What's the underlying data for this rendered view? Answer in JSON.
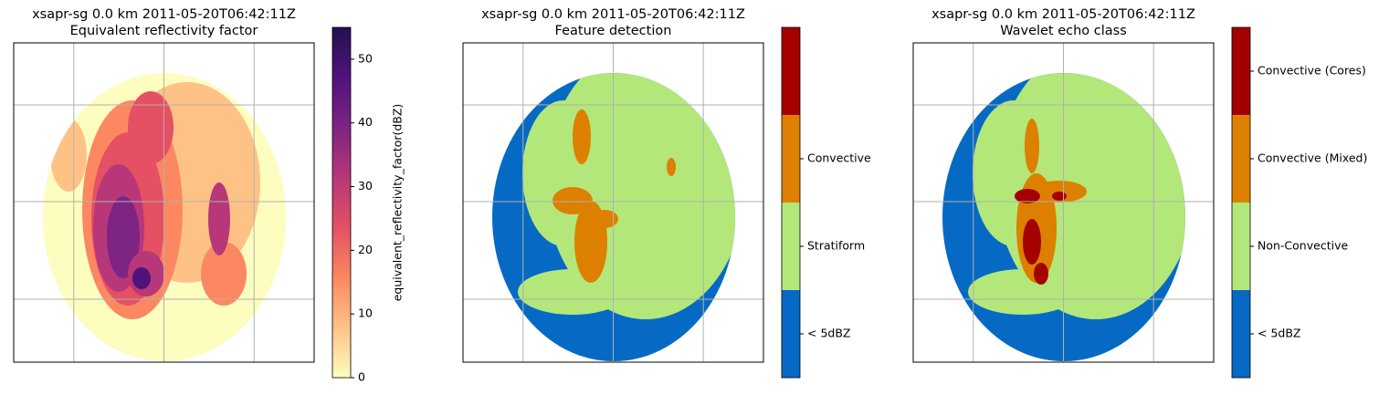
{
  "chart_data": [
    {
      "type": "radar-map",
      "title": "xsapr-sg 0.0 km 2011-05-20T06:42:11Z",
      "subtitle": "Equivalent reflectivity factor",
      "grid": true,
      "colorbar": {
        "kind": "continuous",
        "label": "equivalent_reflectivity_factor(dBZ)",
        "lim": [
          0,
          55
        ],
        "ticks": [
          0,
          10,
          20,
          30,
          40,
          50
        ],
        "colormap": [
          "#fcfdbf",
          "#fec287",
          "#fb8861",
          "#e55064",
          "#b73779",
          "#7e2482",
          "#51127c",
          "#231151"
        ]
      }
    },
    {
      "type": "radar-map",
      "title": "xsapr-sg 0.0 km 2011-05-20T06:42:11Z",
      "subtitle": "Feature detection",
      "grid": true,
      "colorbar": {
        "kind": "categorical",
        "categories": [
          "< 5dBZ",
          "Stratiform",
          "Convective",
          null
        ],
        "colors": [
          "#066ac4",
          "#b3e77a",
          "#dd8000",
          "#a50000"
        ]
      }
    },
    {
      "type": "radar-map",
      "title": "xsapr-sg 0.0 km 2011-05-20T06:42:11Z",
      "subtitle": "Wavelet echo class",
      "grid": true,
      "colorbar": {
        "kind": "categorical",
        "categories": [
          "< 5dBZ",
          "Non-Convective",
          "Convective (Mixed)",
          "Convective (Cores)"
        ],
        "colors": [
          "#066ac4",
          "#b3e77a",
          "#dd8000",
          "#a50000"
        ]
      }
    }
  ]
}
